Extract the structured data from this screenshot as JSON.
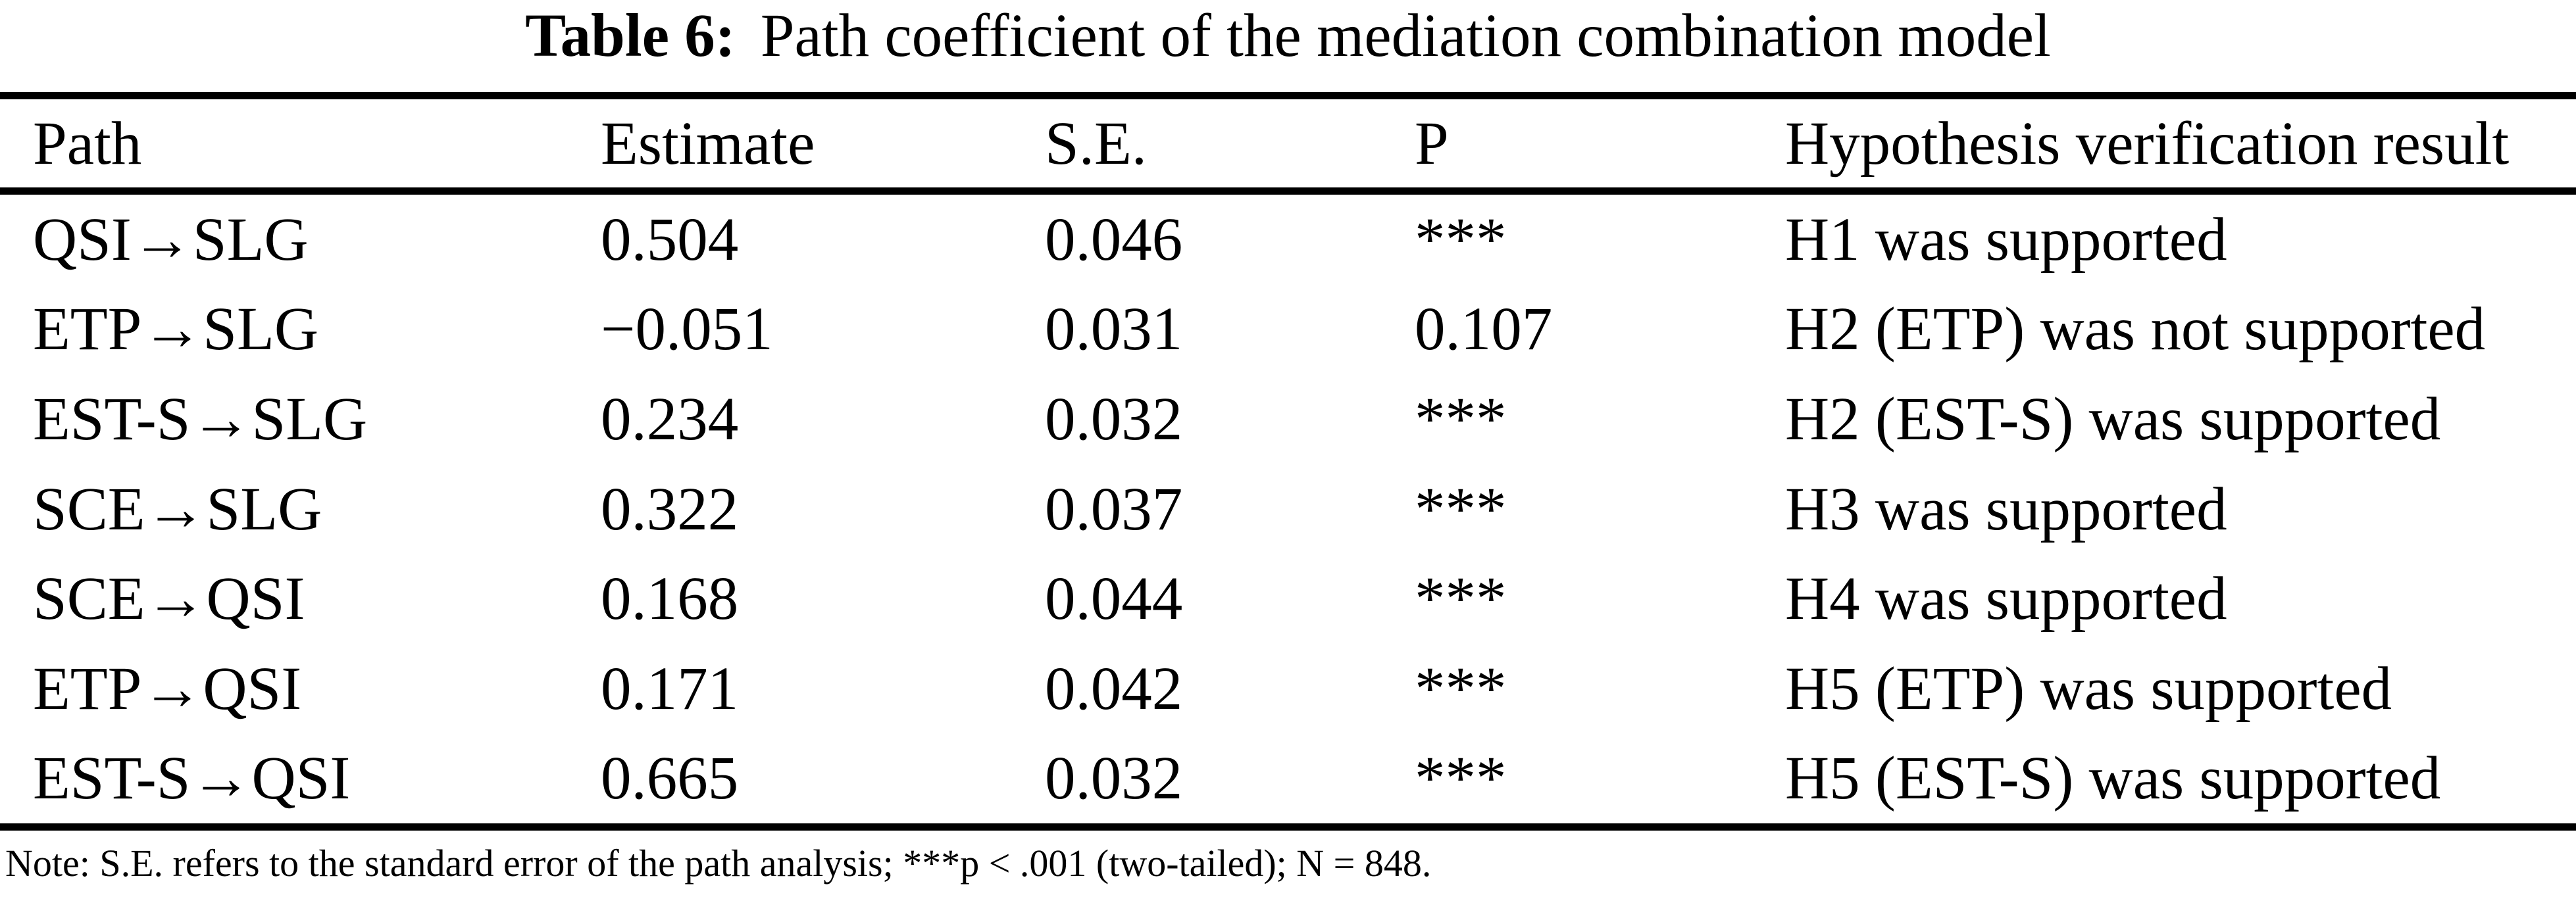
{
  "colors": {
    "ink": "#000000",
    "background": "#ffffff"
  },
  "title": {
    "label": "Table 6:",
    "text": "Path coefficient of the mediation combination model"
  },
  "table": {
    "columns": [
      "Path",
      "Estimate",
      "S.E.",
      "P",
      "Hypothesis verification result"
    ],
    "rows": [
      {
        "path": "QSI→SLG",
        "estimate": "0.504",
        "se": "0.046",
        "p": "***",
        "result": "H1 was supported"
      },
      {
        "path": "ETP→SLG",
        "estimate": "−0.051",
        "se": "0.031",
        "p": "0.107",
        "result": "H2 (ETP) was not supported"
      },
      {
        "path": "EST-S→SLG",
        "estimate": "0.234",
        "se": "0.032",
        "p": "***",
        "result": "H2 (EST-S) was supported"
      },
      {
        "path": "SCE→SLG",
        "estimate": "0.322",
        "se": "0.037",
        "p": "***",
        "result": "H3 was supported"
      },
      {
        "path": "SCE→QSI",
        "estimate": "0.168",
        "se": "0.044",
        "p": "***",
        "result": "H4 was supported"
      },
      {
        "path": "ETP→QSI",
        "estimate": "0.171",
        "se": "0.042",
        "p": "***",
        "result": "H5 (ETP) was supported"
      },
      {
        "path": "EST-S→QSI",
        "estimate": "0.665",
        "se": "0.032",
        "p": "***",
        "result": "H5 (EST-S) was supported"
      }
    ]
  },
  "note": "Note: S.E. refers to the standard error of the path analysis; ***p < .001 (two-tailed); N = 848."
}
